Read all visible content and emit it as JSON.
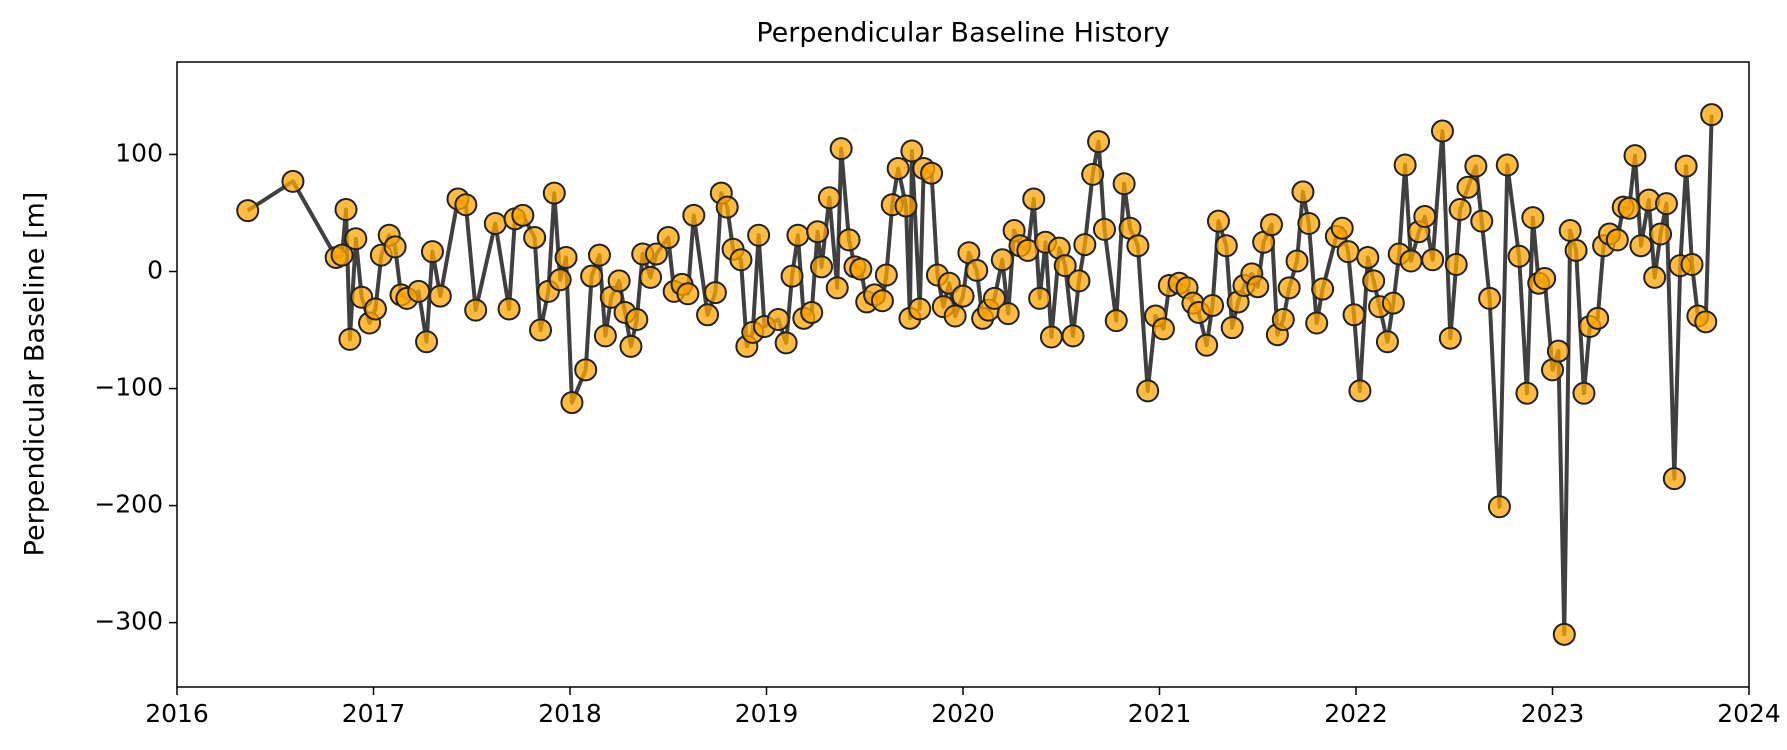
{
  "chart_data": {
    "type": "line",
    "title": "Perpendicular Baseline History",
    "y_label": "Perpendicular Baseline [m]",
    "x": [
      2016.36,
      2016.59,
      2016.81,
      2016.84,
      2016.86,
      2016.88,
      2016.91,
      2016.94,
      2016.98,
      2017.01,
      2017.04,
      2017.08,
      2017.11,
      2017.14,
      2017.17,
      2017.23,
      2017.27,
      2017.3,
      2017.34,
      2017.43,
      2017.47,
      2017.52,
      2017.62,
      2017.69,
      2017.72,
      2017.76,
      2017.82,
      2017.85,
      2017.89,
      2017.92,
      2017.95,
      2017.98,
      2018.01,
      2018.08,
      2018.11,
      2018.15,
      2018.18,
      2018.21,
      2018.25,
      2018.28,
      2018.31,
      2018.34,
      2018.37,
      2018.41,
      2018.44,
      2018.5,
      2018.53,
      2018.57,
      2018.6,
      2018.63,
      2018.7,
      2018.74,
      2018.77,
      2018.8,
      2018.83,
      2018.87,
      2018.9,
      2018.93,
      2018.96,
      2018.99,
      2019.06,
      2019.1,
      2019.13,
      2019.16,
      2019.19,
      2019.23,
      2019.26,
      2019.28,
      2019.32,
      2019.36,
      2019.38,
      2019.42,
      2019.45,
      2019.48,
      2019.51,
      2019.55,
      2019.59,
      2019.61,
      2019.64,
      2019.67,
      2019.71,
      2019.73,
      2019.74,
      2019.78,
      2019.8,
      2019.84,
      2019.87,
      2019.9,
      2019.93,
      2019.96,
      2020.0,
      2020.03,
      2020.07,
      2020.1,
      2020.13,
      2020.16,
      2020.2,
      2020.23,
      2020.26,
      2020.29,
      2020.33,
      2020.36,
      2020.39,
      2020.42,
      2020.45,
      2020.49,
      2020.52,
      2020.56,
      2020.59,
      2020.62,
      2020.66,
      2020.69,
      2020.72,
      2020.78,
      2020.82,
      2020.85,
      2020.89,
      2020.94,
      2020.98,
      2021.02,
      2021.05,
      2021.1,
      2021.14,
      2021.17,
      2021.2,
      2021.24,
      2021.27,
      2021.3,
      2021.34,
      2021.37,
      2021.4,
      2021.43,
      2021.47,
      2021.5,
      2021.53,
      2021.57,
      2021.6,
      2021.63,
      2021.66,
      2021.7,
      2021.73,
      2021.76,
      2021.8,
      2021.83,
      2021.9,
      2021.93,
      2021.96,
      2021.99,
      2022.02,
      2022.06,
      2022.09,
      2022.12,
      2022.16,
      2022.19,
      2022.22,
      2022.25,
      2022.28,
      2022.32,
      2022.35,
      2022.39,
      2022.44,
      2022.48,
      2022.51,
      2022.53,
      2022.57,
      2022.61,
      2022.64,
      2022.68,
      2022.73,
      2022.77,
      2022.83,
      2022.87,
      2022.9,
      2022.93,
      2022.96,
      2023.0,
      2023.03,
      2023.06,
      2023.09,
      2023.12,
      2023.16,
      2023.19,
      2023.23,
      2023.26,
      2023.29,
      2023.33,
      2023.36,
      2023.39,
      2023.42,
      2023.45,
      2023.49,
      2023.52,
      2023.55,
      2023.58,
      2023.62,
      2023.65,
      2023.68,
      2023.71,
      2023.74,
      2023.78,
      2023.81
    ],
    "values": [
      52,
      77,
      12,
      14,
      53,
      -58,
      28,
      -22,
      -44,
      -32,
      14,
      31,
      21,
      -20,
      -23,
      -17,
      -60,
      17,
      -21,
      62,
      57,
      -33,
      41,
      -32,
      45,
      48,
      29,
      -50,
      -17,
      67,
      -7,
      12,
      -112,
      -84,
      -4,
      14,
      -55,
      -22,
      -8,
      -35,
      -64,
      -41,
      15,
      -5,
      15,
      29,
      -17,
      -11,
      -19,
      48,
      -37,
      -18,
      67,
      55,
      19,
      10,
      -64,
      -52,
      31,
      -47,
      -41,
      -61,
      -4,
      31,
      -40,
      -35,
      34,
      4,
      63,
      -14,
      105,
      27,
      4,
      2,
      -26,
      -20,
      -25,
      -3,
      57,
      88,
      56,
      -40,
      103,
      -32,
      88,
      84,
      -3,
      -30,
      -10,
      -38,
      -21,
      16,
      1,
      -40,
      -33,
      -23,
      10,
      -36,
      35,
      22,
      18,
      62,
      -23,
      25,
      -56,
      20,
      5,
      -55,
      -8,
      23,
      83,
      111,
      36,
      -42,
      75,
      37,
      22,
      -102,
      -38,
      -49,
      -12,
      -10,
      -14,
      -27,
      -35,
      -63,
      -29,
      43,
      22,
      -48,
      -26,
      -12,
      -2,
      -13,
      25,
      40,
      -54,
      -41,
      -14,
      9,
      68,
      41,
      -44,
      -15,
      30,
      37,
      17,
      -37,
      -102,
      12,
      -8,
      -30,
      -60,
      -27,
      15,
      91,
      9,
      34,
      47,
      10,
      120,
      -57,
      6,
      53,
      72,
      90,
      43,
      -23,
      -201,
      91,
      13,
      -104,
      46,
      -10,
      -6,
      -84,
      -68,
      -310,
      35,
      18,
      -104,
      -47,
      -40,
      22,
      32,
      27,
      55,
      54,
      99,
      22,
      61,
      -5,
      32,
      58,
      -177,
      5,
      90,
      6,
      -38,
      -43,
      134
    ],
    "color": "#ffa500",
    "edge_color": "#222222",
    "line_color": "#404040",
    "xlim": [
      2016,
      2024
    ],
    "xticks": [
      2016,
      2017,
      2018,
      2019,
      2020,
      2021,
      2022,
      2023,
      2024
    ],
    "ylim": [
      -355,
      179
    ],
    "yticks": [
      {
        "value": -300,
        "label": "−300"
      },
      {
        "value": -200,
        "label": "−200"
      },
      {
        "value": -100,
        "label": "−100"
      },
      0,
      100
    ],
    "grid": false
  }
}
